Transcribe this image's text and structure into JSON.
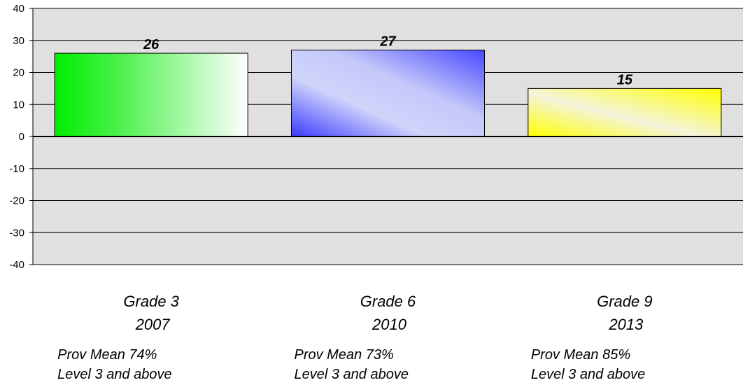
{
  "chart_data": {
    "type": "bar",
    "categories": [
      {
        "grade": "Grade 3",
        "year": "2007",
        "mean": "Prov Mean  74%",
        "level": "Level 3 and above"
      },
      {
        "grade": "Grade 6",
        "year": "2010",
        "mean": "Prov Mean 73%",
        "level": "Level 3 and above"
      },
      {
        "grade": "Grade 9",
        "year": "2013",
        "mean": "Prov Mean 85%",
        "level": "Level 3 and above"
      }
    ],
    "values": [
      26,
      27,
      15
    ],
    "value_labels": [
      "26",
      "27",
      "15"
    ],
    "ylim": [
      -40,
      40
    ],
    "yticks": [
      40,
      30,
      20,
      10,
      0,
      -10,
      -20,
      -30,
      -40
    ],
    "ytick_labels": [
      "40",
      "30",
      "20",
      "10",
      "0",
      "-10",
      "-20",
      "-30",
      "-40"
    ],
    "grid": true,
    "colors": {
      "plot_background": "#e0e0e0",
      "bar_1": [
        "#00ee00",
        "#ffffff"
      ],
      "bar_2": [
        "#3333ff",
        "#d0d4fa"
      ],
      "bar_3": [
        "#ffff00",
        "#f4f4dc"
      ]
    },
    "title": "",
    "xlabel": "",
    "ylabel": ""
  }
}
